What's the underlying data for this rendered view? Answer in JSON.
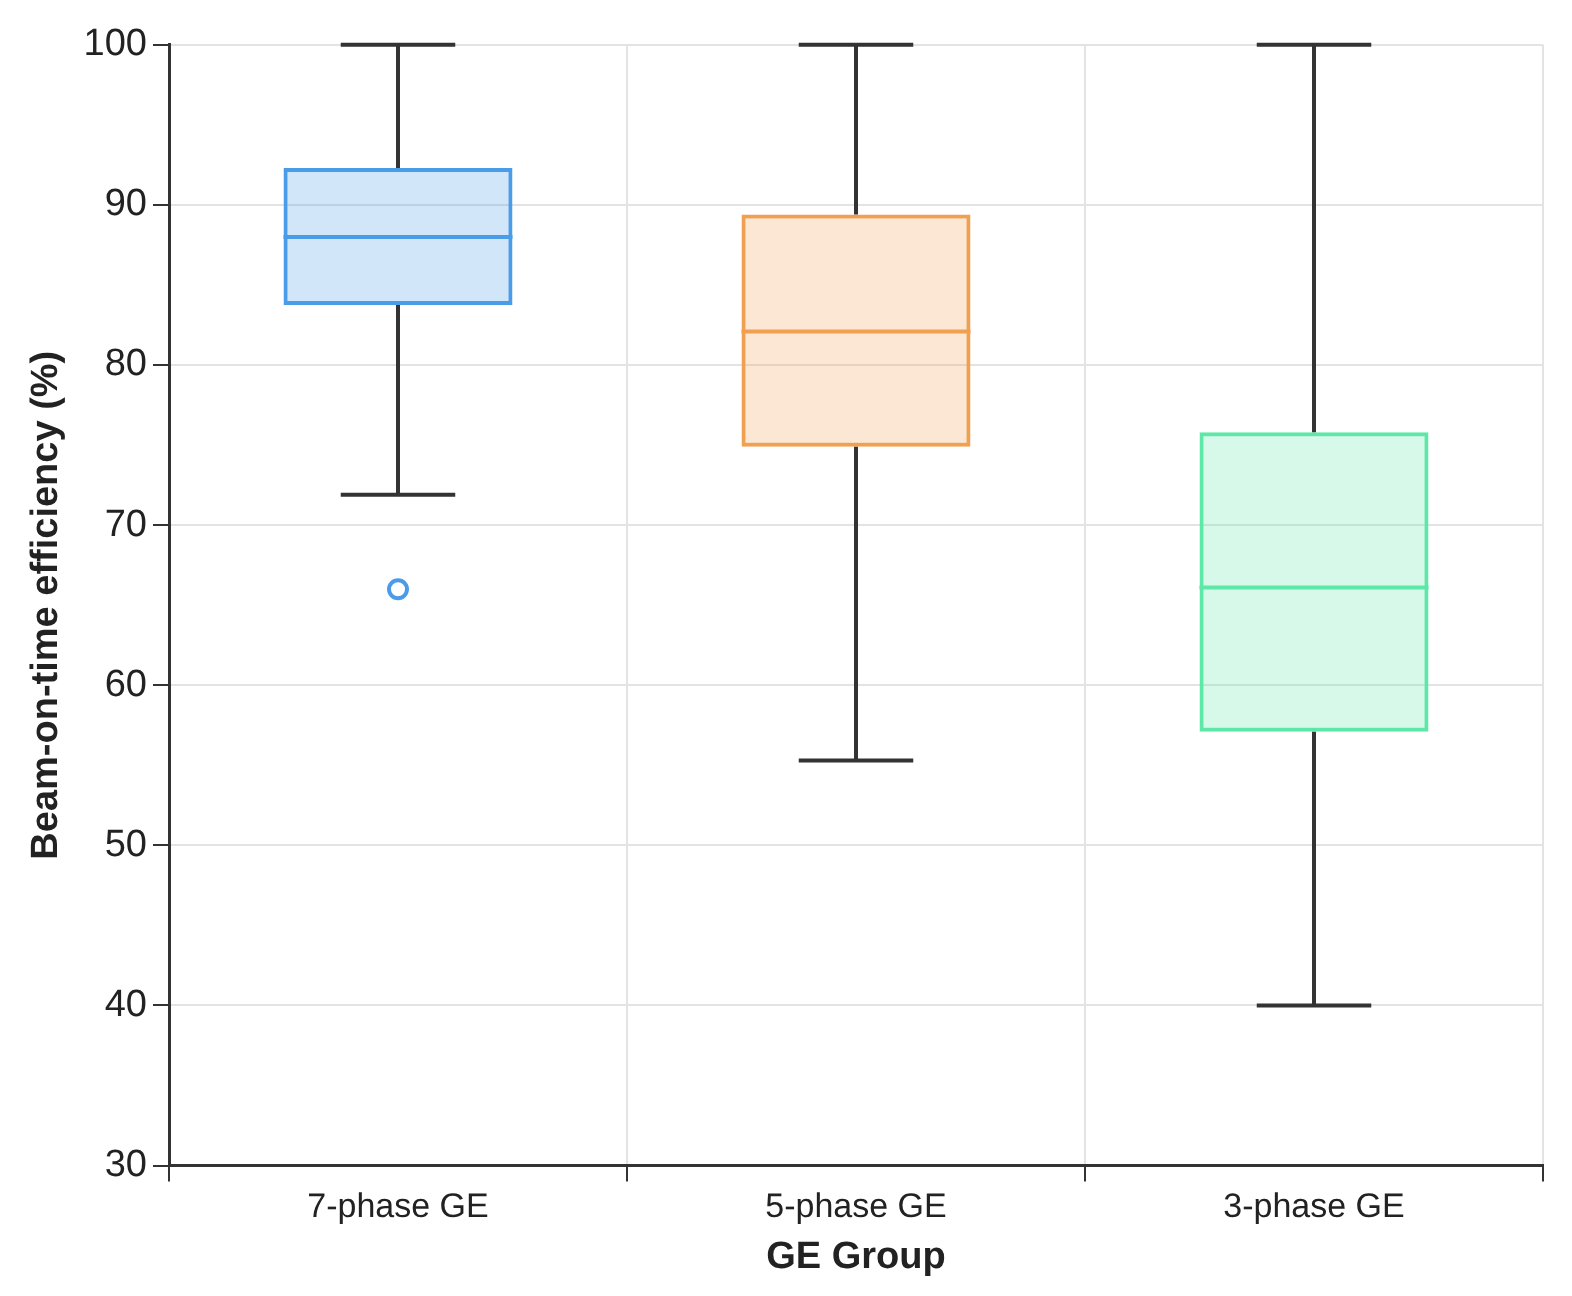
{
  "chart_data": {
    "type": "box",
    "xlabel": "GE Group",
    "ylabel": "Beam-on-time efficiency (%)",
    "categories": [
      "7-phase GE",
      "5-phase GE",
      "3-phase GE"
    ],
    "boxes": [
      {
        "low": 71.9,
        "q1": 83.75,
        "median": 88.0,
        "q3": 92.3,
        "high": 100,
        "outliers": [
          66.0
        ]
      },
      {
        "low": 55.3,
        "q1": 74.9,
        "median": 82.1,
        "q3": 89.4,
        "high": 100
      },
      {
        "low": 40,
        "q1": 57.1,
        "median": 66.1,
        "q3": 75.8,
        "high": 100
      }
    ],
    "colors": [
      "#4a9be8",
      "#f0a050",
      "#5ee8a8"
    ],
    "ylim": [
      30,
      100
    ],
    "yticks": [
      30,
      40,
      50,
      60,
      70,
      80,
      90,
      100
    ],
    "grid": true,
    "legend": false
  }
}
